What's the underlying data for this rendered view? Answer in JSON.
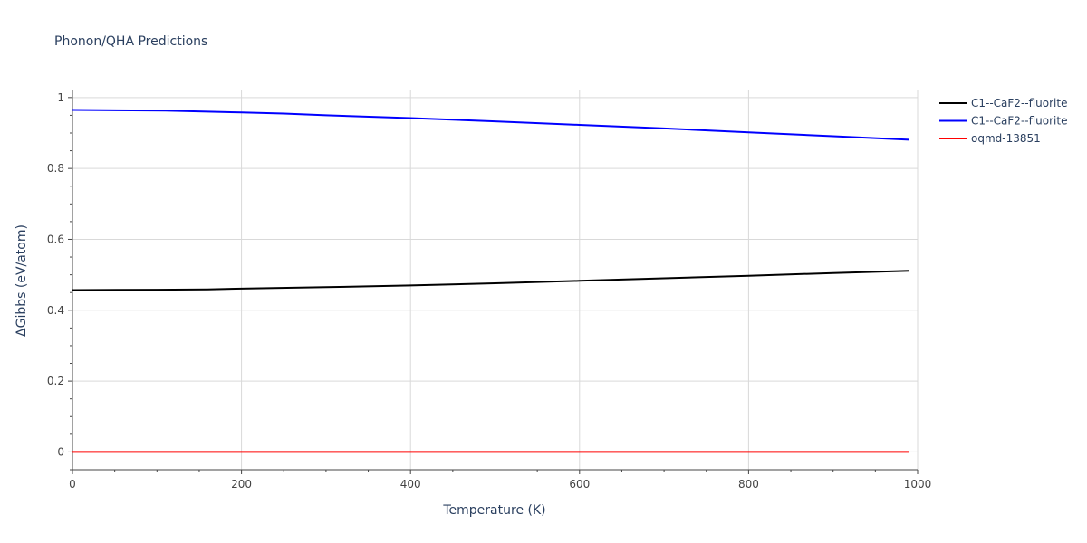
{
  "chart_data": {
    "type": "line",
    "title": "Phonon/QHA Predictions",
    "xlabel": "Temperature (K)",
    "ylabel": "ΔGibbs (eV/atom)",
    "xlim": [
      0,
      1000
    ],
    "ylim": [
      -0.05,
      1.02
    ],
    "x_ticks": [
      0,
      200,
      400,
      600,
      800,
      1000
    ],
    "y_ticks": [
      0,
      0.2,
      0.4,
      0.6,
      0.8,
      1
    ],
    "x_tick_labels": [
      "0",
      "200",
      "400",
      "600",
      "800",
      "1000"
    ],
    "y_tick_labels": [
      "0",
      "0.2",
      "0.4",
      "0.6",
      "0.8",
      "1"
    ],
    "grid": true,
    "legend_position": "top-right",
    "series": [
      {
        "name": "C1--CaF2--fluorite",
        "color": "#000000",
        "x": [
          0,
          100,
          160,
          200,
          300,
          400,
          500,
          600,
          700,
          800,
          900,
          990
        ],
        "y": [
          0.457,
          0.458,
          0.459,
          0.461,
          0.465,
          0.47,
          0.476,
          0.483,
          0.49,
          0.497,
          0.505,
          0.511
        ]
      },
      {
        "name": "C1--CaF2--fluorite",
        "color": "#0000ff",
        "x": [
          0,
          110,
          200,
          250,
          300,
          400,
          500,
          600,
          700,
          800,
          900,
          990
        ],
        "y": [
          0.965,
          0.963,
          0.958,
          0.955,
          0.95,
          0.942,
          0.933,
          0.923,
          0.913,
          0.902,
          0.891,
          0.881
        ]
      },
      {
        "name": "oqmd-13851",
        "color": "#ff0000",
        "x": [
          0,
          100,
          200,
          300,
          400,
          500,
          600,
          700,
          800,
          900,
          990
        ],
        "y": [
          0,
          0,
          0,
          0,
          0,
          0,
          0,
          0,
          0,
          0,
          0
        ]
      }
    ]
  }
}
